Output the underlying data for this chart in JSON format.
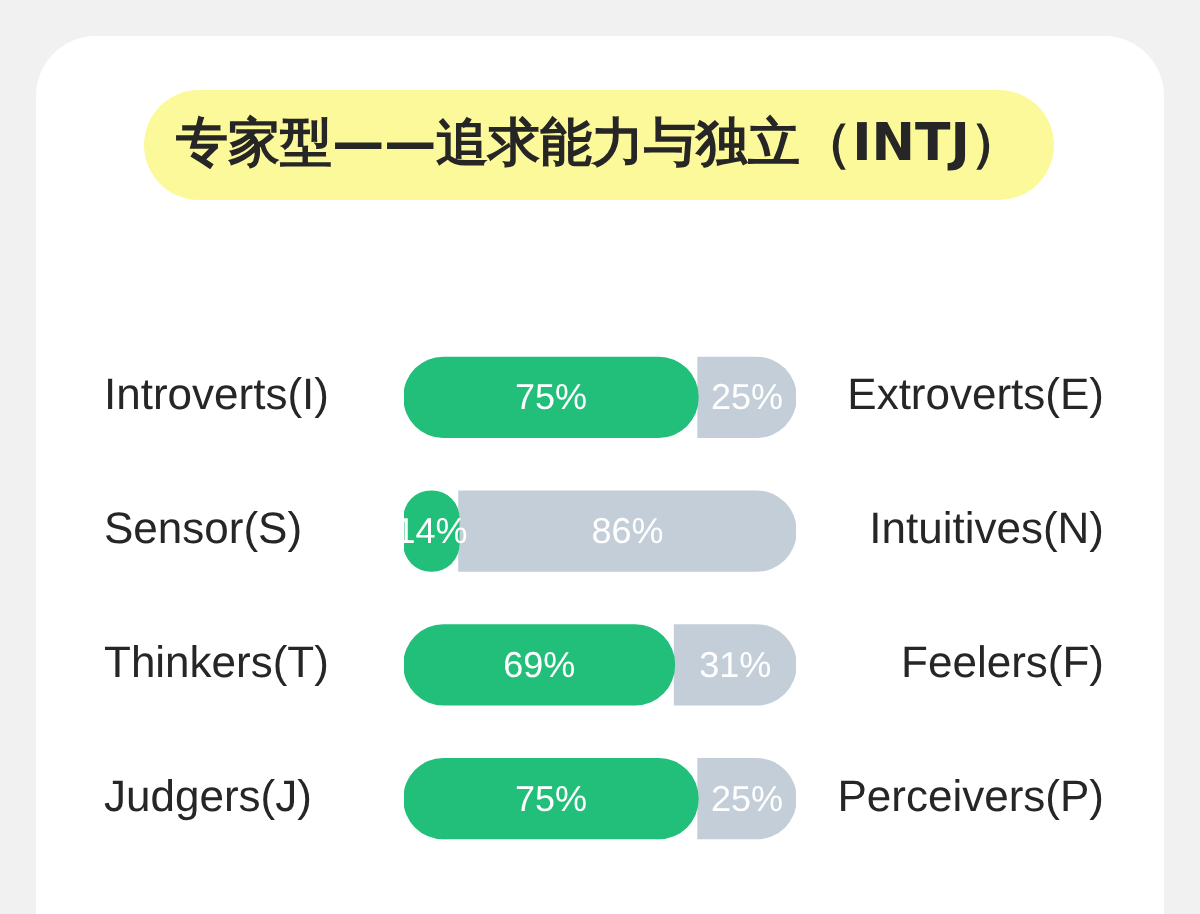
{
  "chart_data": {
    "type": "bar",
    "title": "专家型——追求能力与独立（INTJ）",
    "orientation": "horizontal",
    "stacked": true,
    "categories": [
      "Introverts(I)",
      "Sensor(S)",
      "Thinkers(T)",
      "Judgers(J)"
    ],
    "y2_categories": [
      "Extroverts(E)",
      "Intuitives(N)",
      "Feelers(F)",
      "Perceivers(P)"
    ],
    "series": [
      {
        "color": "#22bf7b",
        "values": [
          75,
          14,
          69,
          75
        ],
        "value_labels": [
          "75%",
          "14%",
          "69%",
          "75%"
        ]
      },
      {
        "color": "#c3ced9",
        "values": [
          25,
          86,
          31,
          25
        ],
        "value_labels": [
          "25%",
          "86%",
          "31%",
          "25%"
        ]
      }
    ],
    "xlim": [
      0,
      100
    ],
    "tick_labels": "y",
    "grid": false,
    "legend": false
  }
}
